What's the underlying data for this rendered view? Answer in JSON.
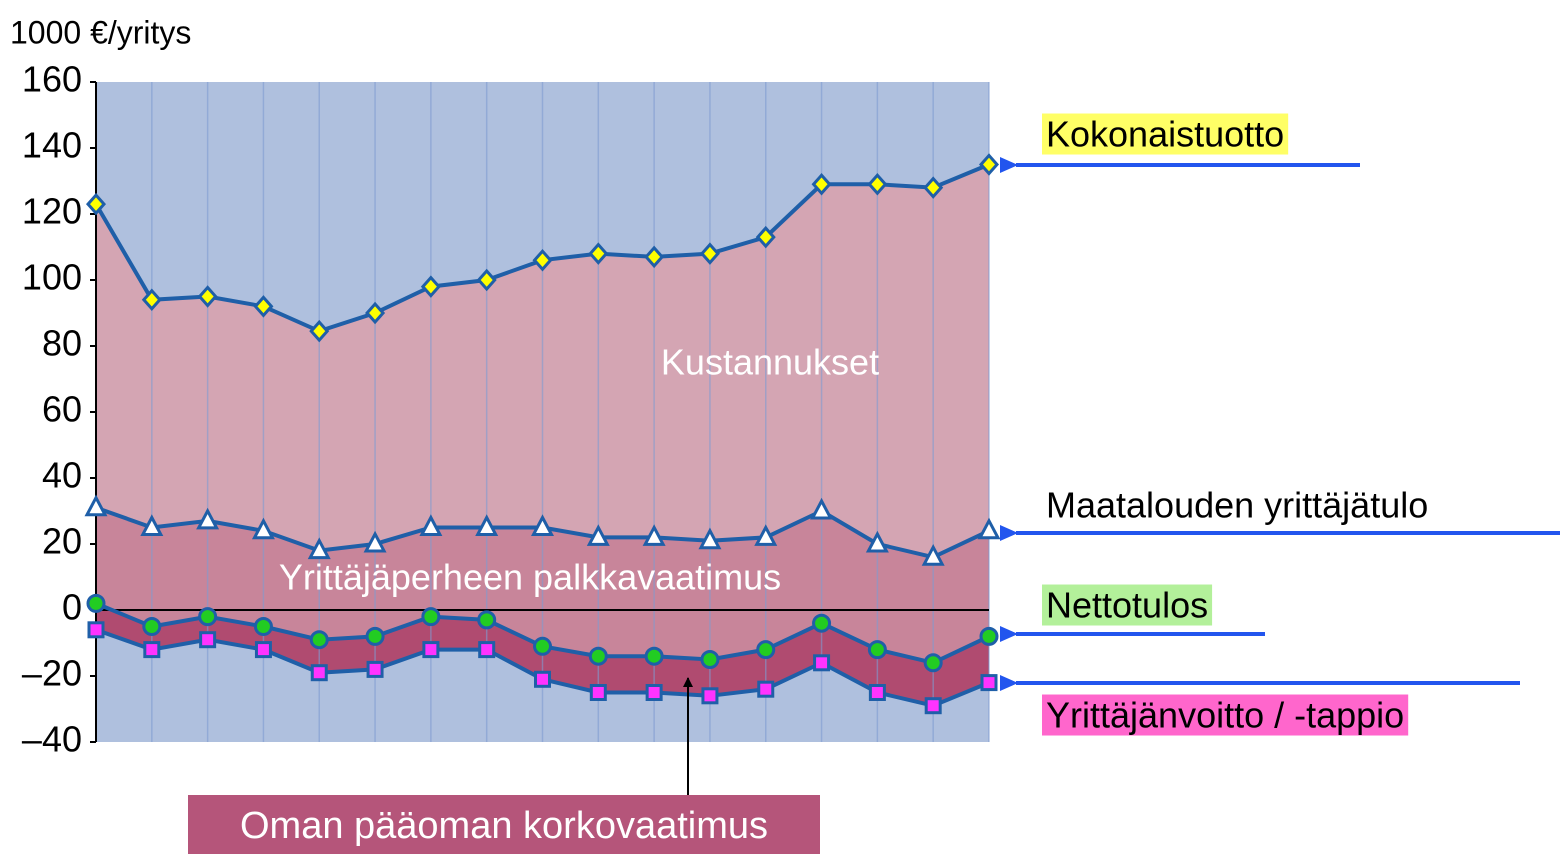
{
  "chart_data": {
    "type": "line",
    "y_label": "1000 €/yritys",
    "categories": [
      null,
      null,
      null,
      null,
      null,
      null,
      null,
      null,
      null,
      null,
      null,
      null,
      null,
      null,
      null,
      null,
      null
    ],
    "ylim": [
      -40,
      160
    ],
    "yticks": [
      {
        "value": -40,
        "label": "–40"
      },
      {
        "value": -20,
        "label": "–20"
      },
      0,
      20,
      40,
      60,
      80,
      100,
      120,
      140,
      160
    ],
    "background_color": "#afc0de",
    "grid_x": true,
    "zero_line": true,
    "series": [
      {
        "name": "Kokonaistuotto",
        "color": "#1f5fa8",
        "marker": "diamond",
        "marker_color": "#ffff00",
        "fill": "#d4a5b3",
        "label_background": "#ffff66",
        "values": [
          123,
          94,
          95,
          92,
          84.5,
          90,
          98,
          100,
          106,
          108,
          107,
          108,
          113,
          129,
          129,
          128,
          135
        ]
      },
      {
        "name": "Maatalouden yrittäjätulo",
        "color": "#1f5fa8",
        "marker": "triangle",
        "marker_color": "#ffffff",
        "fill": "#c8859a",
        "values": [
          31,
          25,
          27,
          24,
          18,
          20,
          25,
          25,
          25,
          22,
          22,
          21,
          22,
          30,
          20,
          16,
          24
        ]
      },
      {
        "name": "Nettotulos",
        "color": "#1f5fa8",
        "marker": "circle",
        "marker_color": "#22cc22",
        "fill": "#b04b70",
        "label_background": "#b3f09a",
        "values": [
          2,
          -5,
          -2,
          -5,
          -9,
          -8,
          -2,
          -3,
          -11,
          -14,
          -14,
          -15,
          -12,
          -4,
          -12,
          -16,
          -8
        ]
      },
      {
        "name": "Yrittäjänvoitto / -tappio",
        "color": "#1f5fa8",
        "marker": "square",
        "marker_color": "#ff33ff",
        "label_background": "#ff66cc",
        "values": [
          -6,
          -12,
          -9,
          -12,
          -19,
          -18,
          -12,
          -12,
          -21,
          -25,
          -25,
          -26,
          -24,
          -16,
          -25,
          -29,
          -22
        ]
      }
    ],
    "area_labels": [
      "Kustannukset",
      "Yrittäjäperheen palkkavaatimus"
    ],
    "callout": "Oman pääoman korkovaatimus"
  }
}
